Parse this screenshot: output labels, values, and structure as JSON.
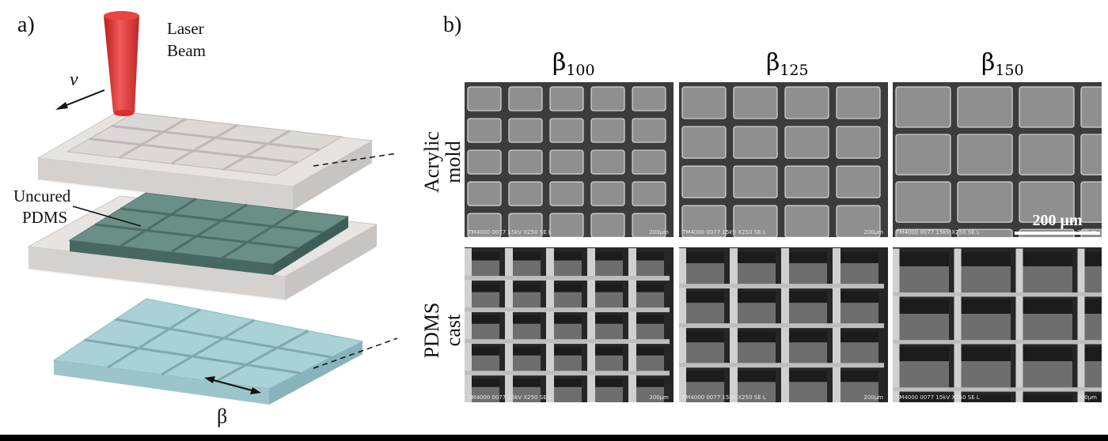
{
  "panel_a": {
    "label": "a)",
    "laser_label_line1": "Laser",
    "laser_label_line2": "Beam",
    "velocity_symbol": "v",
    "uncured_line1": "Uncured",
    "uncured_line2": "PDMS",
    "beta_symbol": "β",
    "colors": {
      "laser": "#e23a3a",
      "acrylic": "#e6e3e1",
      "pdms_uncured": "#5c8078",
      "pdms_cast": "#9ec9cf"
    }
  },
  "panel_b": {
    "label": "b)",
    "columns": [
      {
        "symbol": "β",
        "subscript": "100"
      },
      {
        "symbol": "β",
        "subscript": "125"
      },
      {
        "symbol": "β",
        "subscript": "150"
      }
    ],
    "rows": [
      {
        "line1": "Acrylic",
        "line2": "mold"
      },
      {
        "line1": "PDMS",
        "line2": "cast"
      }
    ],
    "sem_meta": "TM4000 0077 15kV X250 SE L",
    "sem_scale": "200μm",
    "scale_bar_label": "200 μm"
  }
}
